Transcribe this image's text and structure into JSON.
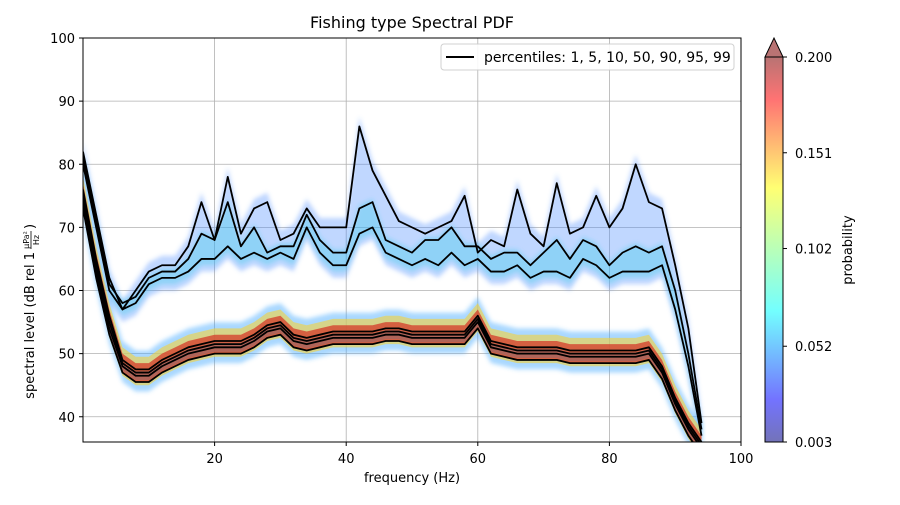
{
  "chart_data": {
    "type": "heatmap",
    "title": "Fishing type Spectral PDF",
    "xlabel": "frequency (Hz)",
    "ylabel_prefix": "spectral level (dB rel 1",
    "ylabel_unit_num": "µPa²",
    "ylabel_unit_den": "Hz",
    "ylabel_suffix": ")",
    "xlim": [
      0,
      100
    ],
    "ylim": [
      36,
      100
    ],
    "xticks": [
      20,
      40,
      60,
      80,
      100
    ],
    "xtick_labels": [
      "20",
      "40",
      "60",
      "80",
      "100"
    ],
    "yticks": [
      40,
      50,
      60,
      70,
      80,
      90,
      100
    ],
    "ytick_labels": [
      "40",
      "50",
      "60",
      "70",
      "80",
      "90",
      "100"
    ],
    "grid": true,
    "legend": {
      "position": "top-right",
      "entries": [
        {
          "label": "percentiles: 1, 5, 10, 50, 90, 95, 99",
          "color": "#000000"
        }
      ]
    },
    "colorbar": {
      "label": "probability",
      "colormap": "jet",
      "range": [
        0.003,
        0.2
      ],
      "extend": "max",
      "ticks": [
        0.003,
        0.052,
        0.102,
        0.151,
        0.2
      ],
      "tick_labels": [
        "0.003",
        "0.052",
        "0.102",
        "0.151",
        "0.200"
      ]
    },
    "frequency_hz": [
      0,
      2,
      4,
      6,
      8,
      10,
      12,
      14,
      16,
      18,
      20,
      22,
      24,
      26,
      28,
      30,
      32,
      34,
      36,
      38,
      40,
      42,
      44,
      46,
      48,
      50,
      52,
      54,
      56,
      58,
      60,
      62,
      64,
      66,
      68,
      70,
      72,
      74,
      76,
      78,
      80,
      82,
      84,
      86,
      88,
      90,
      92,
      94
    ],
    "series": [
      {
        "percentile": 1,
        "values": [
          73,
          62,
          53,
          47,
          45.5,
          45.5,
          47,
          48,
          49,
          49.5,
          50,
          50,
          50,
          51,
          52.5,
          53,
          51,
          50.5,
          51,
          51.5,
          51.5,
          51.5,
          51.5,
          52,
          52,
          51.5,
          51.5,
          51.5,
          51.5,
          51.5,
          54,
          50,
          49.5,
          49,
          49,
          49,
          49,
          48.5,
          48.5,
          48.5,
          48.5,
          48.5,
          48.5,
          49,
          46,
          41,
          37,
          34
        ]
      },
      {
        "percentile": 5,
        "values": [
          74,
          63,
          54,
          48,
          46.5,
          46.5,
          48,
          49,
          50,
          50.5,
          51,
          51,
          51,
          52,
          53.5,
          54,
          52,
          51.5,
          52,
          52.5,
          52.5,
          52.5,
          52.5,
          53,
          53,
          52.5,
          52.5,
          52.5,
          52.5,
          52.5,
          55,
          51,
          50.5,
          50,
          50,
          50,
          50,
          49.5,
          49.5,
          49.5,
          49.5,
          49.5,
          49.5,
          50,
          47,
          42,
          38,
          35
        ]
      },
      {
        "percentile": 10,
        "values": [
          75,
          64,
          55,
          48.5,
          47,
          47,
          48.5,
          49.5,
          50.5,
          51,
          51.5,
          51.5,
          51.5,
          52.5,
          54,
          54.5,
          52.5,
          52,
          52.5,
          53,
          53,
          53,
          53,
          53.5,
          53.5,
          53,
          53,
          53,
          53,
          53,
          55.5,
          51.5,
          51,
          50.5,
          50.5,
          50.5,
          50.5,
          50,
          50,
          50,
          50,
          50,
          50,
          50.5,
          47.5,
          42.5,
          38.5,
          35.5
        ]
      },
      {
        "percentile": 50,
        "values": [
          76,
          65,
          56,
          49,
          47.5,
          47.5,
          49,
          50,
          51,
          51.5,
          52,
          52,
          52,
          53,
          54.5,
          55,
          53,
          52.5,
          53,
          53.5,
          53.5,
          53.5,
          53.5,
          54,
          54,
          53.5,
          53.5,
          53.5,
          53.5,
          53.5,
          56,
          52,
          51.5,
          51,
          51,
          51,
          51,
          50.5,
          50.5,
          50.5,
          50.5,
          50.5,
          50.5,
          51,
          48,
          43,
          39,
          36
        ]
      },
      {
        "percentile": 90,
        "values": [
          80,
          70,
          60,
          57,
          58,
          61,
          62,
          62,
          63,
          65,
          65,
          67,
          65,
          66,
          65,
          66,
          65,
          70,
          66,
          64,
          64,
          69,
          70,
          66,
          65,
          64,
          65,
          64,
          66,
          64,
          65,
          63,
          63,
          64,
          62,
          63,
          63,
          62,
          65,
          64,
          62,
          63,
          63,
          63,
          64,
          57,
          48,
          37
        ]
      },
      {
        "percentile": 95,
        "values": [
          81,
          71,
          61,
          58,
          59,
          62,
          63,
          63,
          65,
          69,
          68,
          74,
          67,
          70,
          66,
          67,
          67,
          72,
          68,
          66,
          66,
          73,
          74,
          68,
          67,
          66,
          68,
          68,
          70,
          67,
          67,
          65,
          66,
          66,
          64,
          66,
          68,
          65,
          68,
          67,
          64,
          66,
          67,
          66,
          67,
          60,
          50,
          38
        ]
      },
      {
        "percentile": 99,
        "values": [
          82,
          72,
          62,
          57,
          60,
          63,
          64,
          64,
          67,
          74,
          68,
          78,
          69,
          73,
          74,
          68,
          69,
          73,
          70,
          70,
          70,
          86,
          79,
          75,
          71,
          70,
          69,
          70,
          71,
          75,
          66,
          68,
          67,
          76,
          69,
          67,
          77,
          69,
          70,
          75,
          70,
          73,
          80,
          74,
          73,
          64,
          54,
          39
        ]
      }
    ]
  }
}
